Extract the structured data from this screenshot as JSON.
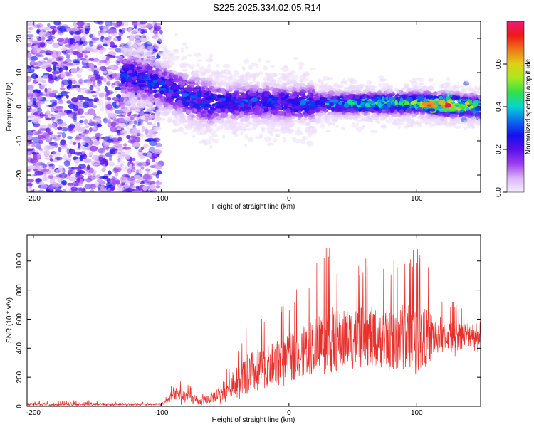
{
  "title": "S225.2025.334.02.05.R14",
  "colors": {
    "snr_line": "#e8302c",
    "axis": "#000000",
    "background": "#ffffff",
    "colormap": [
      "#f6eefe",
      "#d9b3f8",
      "#9c3cf0",
      "#5a10e8",
      "#1410f0",
      "#0a6cf0",
      "#08d4d0",
      "#30e04a",
      "#a8e81c",
      "#e0d018",
      "#f07818",
      "#f01818",
      "#f01878"
    ]
  },
  "chart_data": [
    {
      "type": "heatmap",
      "xlabel": "Height of straight line (km)",
      "ylabel": "Frequency (Hz)",
      "xlim": [
        -205,
        150
      ],
      "ylim": [
        -25,
        25
      ],
      "x_ticks": [
        -200,
        -100,
        0,
        100
      ],
      "x_tick_labels": [
        "-200",
        "-100",
        "0",
        "100"
      ],
      "y_ticks": [
        20,
        10,
        0,
        -10,
        -20
      ],
      "y_tick_labels": [
        "20",
        "10",
        "0",
        "-10",
        "-20"
      ],
      "colorbar": {
        "label": "Normalized spectral amplitude",
        "range": [
          0,
          0.8
        ],
        "ticks": [
          0.0,
          0.2,
          0.4,
          0.6
        ],
        "tick_labels": [
          "0.0",
          "0.2",
          "0.4",
          "0.6"
        ]
      },
      "description_of_field": {
        "noise_region_x": [
          -205,
          -100
        ],
        "signal_center_hz": [
          [
            -120,
            9
          ],
          [
            -100,
            6
          ],
          [
            -80,
            3
          ],
          [
            -60,
            1
          ],
          [
            -30,
            1.5
          ],
          [
            0,
            1
          ],
          [
            50,
            1
          ],
          [
            100,
            1
          ],
          [
            150,
            0
          ]
        ],
        "signal_peak_amplitude": [
          [
            -120,
            0.28
          ],
          [
            -90,
            0.3
          ],
          [
            -50,
            0.3
          ],
          [
            0,
            0.3
          ],
          [
            60,
            0.45
          ],
          [
            100,
            0.5
          ],
          [
            120,
            0.75
          ],
          [
            145,
            0.55
          ]
        ]
      }
    },
    {
      "type": "line",
      "xlabel": "Height of straight line (km)",
      "ylabel": "SNR (10 * v/v)",
      "xlim": [
        -205,
        150
      ],
      "ylim": [
        0,
        1180
      ],
      "x_ticks": [
        -200,
        -100,
        0,
        100
      ],
      "x_tick_labels": [
        "-200",
        "-100",
        "0",
        "100"
      ],
      "y_ticks": [
        0,
        200,
        400,
        600,
        800,
        1000
      ],
      "y_tick_labels": [
        "0",
        "200",
        "400",
        "600",
        "800",
        "1000"
      ],
      "series": [
        {
          "color": "#e8302c",
          "envelope_x": [
            -205,
            -180,
            -160,
            -140,
            -120,
            -100,
            -95,
            -90,
            -80,
            -70,
            -60,
            -50,
            -40,
            -30,
            -20,
            -10,
            0,
            10,
            20,
            30,
            40,
            50,
            60,
            70,
            80,
            90,
            100,
            110,
            120,
            130,
            140,
            150
          ],
          "envelope_mean": [
            15,
            15,
            18,
            15,
            15,
            15,
            40,
            90,
            70,
            30,
            60,
            120,
            180,
            230,
            260,
            300,
            330,
            380,
            420,
            460,
            450,
            470,
            480,
            470,
            450,
            480,
            460,
            480,
            500,
            480,
            500,
            500
          ],
          "envelope_max": [
            35,
            40,
            45,
            35,
            30,
            30,
            80,
            180,
            170,
            80,
            150,
            250,
            400,
            630,
            600,
            680,
            750,
            850,
            950,
            1170,
            1000,
            1050,
            1020,
            980,
            1000,
            1100,
            1130,
            960,
            720,
            720,
            700,
            700
          ],
          "envelope_min": [
            2,
            2,
            3,
            2,
            2,
            2,
            5,
            10,
            10,
            5,
            10,
            20,
            40,
            60,
            90,
            120,
            150,
            200,
            230,
            260,
            250,
            260,
            260,
            250,
            230,
            250,
            240,
            300,
            320,
            340,
            360,
            380
          ]
        }
      ]
    }
  ]
}
